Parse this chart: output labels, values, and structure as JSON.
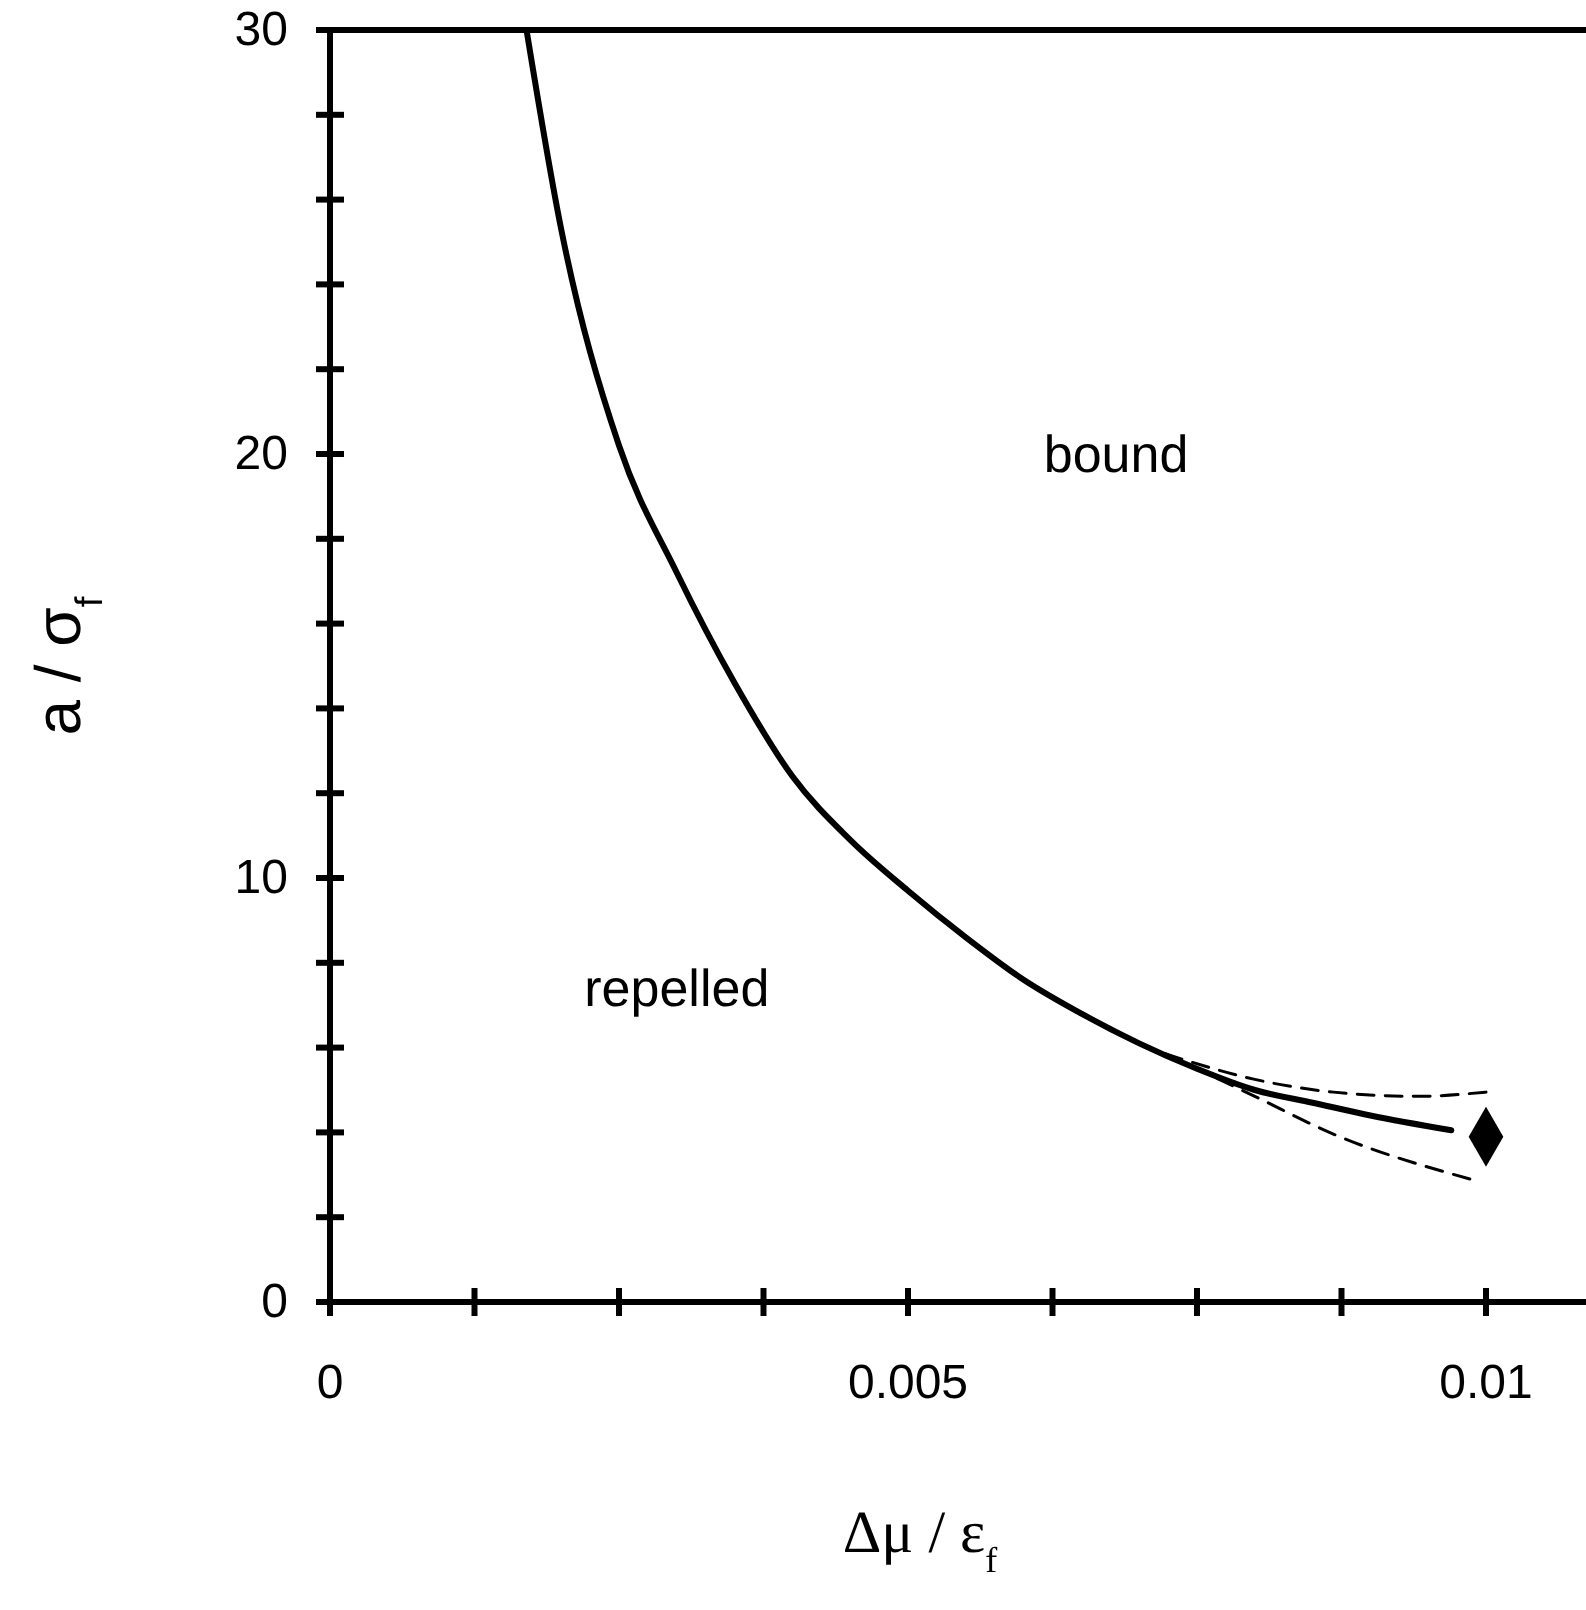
{
  "chart_data": {
    "type": "line",
    "xlabel": "Δμ / ε$_{f}$",
    "ylabel": "a / σ$_{f}$",
    "xlim": [
      0,
      0.0109
    ],
    "ylim": [
      0,
      30
    ],
    "xticks": [
      0,
      {
        "value": 0.00125,
        "label": null
      },
      {
        "value": 0.0025,
        "label": null
      },
      {
        "value": 0.00375,
        "label": null
      },
      0.005,
      {
        "value": 0.00625,
        "label": null
      },
      {
        "value": 0.0075,
        "label": null
      },
      {
        "value": 0.00875,
        "label": null
      },
      0.01
    ],
    "yticks": [
      0,
      {
        "value": 2,
        "label": null
      },
      {
        "value": 4,
        "label": null
      },
      {
        "value": 6,
        "label": null
      },
      {
        "value": 8,
        "label": null
      },
      10,
      {
        "value": 12,
        "label": null
      },
      {
        "value": 14,
        "label": null
      },
      {
        "value": 16,
        "label": null
      },
      {
        "value": 18,
        "label": null
      },
      20,
      {
        "value": 22,
        "label": null
      },
      {
        "value": 24,
        "label": null
      },
      {
        "value": 26,
        "label": null
      },
      {
        "value": 28,
        "label": null
      },
      30
    ],
    "grid": false,
    "series": [
      {
        "color": "#000000",
        "line_style": "solid",
        "marker": "none",
        "x": [
          0.0017,
          0.002,
          0.0025,
          0.003,
          0.0035,
          0.004,
          0.0045,
          0.005,
          0.0055,
          0.006,
          0.0065,
          0.007,
          0.0075,
          0.008,
          0.0085,
          0.009,
          0.0097
        ],
        "values": [
          30,
          25.3,
          20.2,
          17.2,
          14.6,
          12.4,
          10.9,
          9.7,
          8.6,
          7.6,
          6.8,
          6.1,
          5.5,
          5.0,
          4.7,
          4.4,
          4.05
        ]
      },
      {
        "color": "#000000",
        "line_style": "dashed",
        "marker": "none",
        "x": [
          0.00723,
          0.008,
          0.00868,
          0.0094,
          0.01
        ],
        "values": [
          5.85,
          5.25,
          4.95,
          4.85,
          4.95
        ]
      },
      {
        "color": "#000000",
        "line_style": "dashed",
        "marker": "none",
        "x": [
          0.00723,
          0.008,
          0.00868,
          0.00986
        ],
        "values": [
          5.85,
          4.85,
          3.96,
          2.9
        ]
      },
      {
        "type": "scatter",
        "color": "#000000",
        "marker": "diamond",
        "x": [
          0.01
        ],
        "values": [
          3.9
        ]
      }
    ],
    "annotations": [
      "bound",
      "repelled"
    ]
  }
}
